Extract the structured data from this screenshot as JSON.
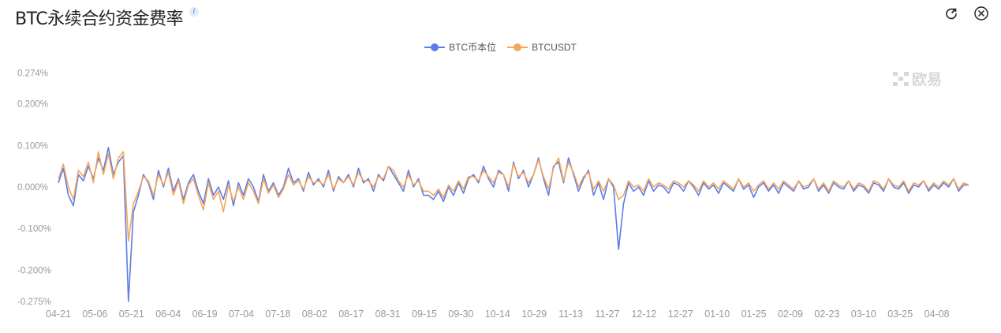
{
  "header": {
    "title": "BTC永续合约资金费率",
    "info_icon": "info-icon",
    "refresh_icon": "refresh-icon",
    "close_icon": "close-icon"
  },
  "watermark": "欧易",
  "chart_data": {
    "type": "line",
    "title": "",
    "xlabel": "",
    "ylabel": "",
    "x_tick_labels": [
      "04-21",
      "05-06",
      "05-21",
      "06-04",
      "06-19",
      "07-04",
      "07-18",
      "08-02",
      "08-17",
      "08-31",
      "09-15",
      "09-30",
      "10-14",
      "10-29",
      "11-13",
      "11-27",
      "12-12",
      "12-27",
      "01-10",
      "01-25",
      "02-09",
      "02-23",
      "03-10",
      "03-25",
      "04-08"
    ],
    "y_tick_labels": [
      "0.274%",
      "0.200%",
      "0.100%",
      "0.000%",
      "-0.100%",
      "-0.200%",
      "-0.275%"
    ],
    "y_ticks": [
      0.274,
      0.2,
      0.1,
      0,
      -0.1,
      -0.2,
      -0.275
    ],
    "ylim": [
      -0.275,
      0.274
    ],
    "y_unit": "%",
    "grid": false,
    "legend_position": "top-center",
    "series": [
      {
        "name": "BTC币本位",
        "color": "#5b7de8",
        "values": [
          0.01,
          0.045,
          -0.02,
          -0.045,
          0.03,
          0.015,
          0.05,
          0.02,
          0.07,
          0.04,
          0.095,
          0.03,
          0.06,
          0.075,
          -0.275,
          -0.06,
          -0.02,
          0.03,
          0.01,
          -0.03,
          0.04,
          0.0,
          0.045,
          -0.01,
          0.02,
          -0.03,
          0.01,
          0.03,
          -0.01,
          -0.04,
          0.02,
          -0.02,
          0.0,
          -0.03,
          0.015,
          -0.045,
          0.01,
          -0.02,
          0.02,
          0.0,
          -0.035,
          0.03,
          -0.01,
          0.01,
          -0.02,
          0.0,
          0.045,
          0.01,
          0.02,
          -0.01,
          0.035,
          0.005,
          0.02,
          0.0,
          0.04,
          -0.01,
          0.025,
          0.01,
          0.03,
          0.0,
          0.045,
          0.01,
          0.02,
          -0.01,
          0.03,
          0.015,
          0.05,
          0.03,
          0.01,
          -0.01,
          0.04,
          0.0,
          0.02,
          -0.02,
          -0.02,
          -0.03,
          -0.01,
          -0.035,
          0.0,
          -0.02,
          0.01,
          -0.015,
          0.02,
          0.03,
          0.01,
          0.05,
          0.02,
          0.0,
          0.04,
          0.03,
          -0.01,
          0.06,
          0.02,
          0.04,
          0.0,
          0.03,
          0.07,
          0.02,
          -0.02,
          0.05,
          0.06,
          0.01,
          0.07,
          0.03,
          -0.01,
          0.02,
          0.04,
          -0.02,
          0.01,
          -0.03,
          0.02,
          0.0,
          -0.15,
          -0.04,
          0.01,
          -0.01,
          0.0,
          -0.02,
          0.015,
          -0.01,
          0.005,
          0.0,
          -0.015,
          0.01,
          0.005,
          -0.01,
          0.015,
          0.0,
          -0.02,
          0.01,
          -0.005,
          0.005,
          -0.015,
          0.01,
          0.0,
          -0.01,
          0.02,
          -0.005,
          0.005,
          -0.025,
          0.0,
          0.01,
          -0.01,
          0.005,
          -0.015,
          0.01,
          0.0,
          -0.01,
          0.015,
          -0.005,
          0.0,
          0.02,
          -0.01,
          0.005,
          -0.015,
          0.01,
          0.0,
          -0.005,
          0.015,
          -0.01,
          0.005,
          0.0,
          -0.015,
          0.01,
          0.005,
          -0.01,
          0.02,
          0.0,
          -0.005,
          0.01,
          -0.015,
          0.005,
          0.0,
          0.015,
          -0.01,
          0.005,
          -0.005,
          0.01,
          0.0,
          0.02,
          -0.01,
          0.005,
          0.005
        ]
      },
      {
        "name": "BTCUSDT",
        "color": "#f5a65b",
        "values": [
          0.02,
          0.055,
          0.0,
          -0.03,
          0.04,
          0.025,
          0.06,
          0.01,
          0.085,
          0.03,
          0.08,
          0.02,
          0.07,
          0.085,
          -0.13,
          -0.04,
          -0.01,
          0.025,
          0.015,
          -0.02,
          0.03,
          0.005,
          0.035,
          -0.02,
          0.015,
          -0.04,
          0.005,
          0.02,
          -0.02,
          -0.055,
          0.01,
          -0.03,
          -0.01,
          -0.06,
          0.005,
          -0.035,
          0.0,
          -0.03,
          0.01,
          -0.01,
          -0.04,
          0.02,
          -0.015,
          0.005,
          -0.025,
          -0.005,
          0.03,
          0.005,
          0.015,
          -0.005,
          0.025,
          0.01,
          0.015,
          0.005,
          0.03,
          -0.005,
          0.02,
          0.01,
          0.025,
          0.005,
          0.035,
          0.015,
          0.015,
          0.0,
          0.025,
          0.02,
          0.05,
          0.04,
          0.015,
          0.0,
          0.03,
          0.005,
          0.015,
          -0.01,
          -0.01,
          -0.02,
          -0.005,
          -0.025,
          0.005,
          -0.01,
          0.015,
          -0.005,
          0.025,
          0.025,
          0.015,
          0.04,
          0.025,
          0.01,
          0.035,
          0.03,
          0.0,
          0.055,
          0.025,
          0.035,
          0.01,
          0.03,
          0.065,
          0.025,
          -0.005,
          0.045,
          0.07,
          0.015,
          0.06,
          0.035,
          0.0,
          0.025,
          0.035,
          -0.005,
          0.015,
          -0.01,
          0.02,
          0.005,
          -0.03,
          -0.02,
          0.015,
          0.0,
          0.005,
          -0.01,
          0.02,
          0.0,
          0.01,
          0.005,
          -0.005,
          0.015,
          0.01,
          0.0,
          0.015,
          0.005,
          -0.01,
          0.015,
          0.0,
          0.01,
          -0.005,
          0.015,
          0.005,
          -0.005,
          0.02,
          0.0,
          0.01,
          -0.01,
          0.005,
          0.015,
          -0.005,
          0.01,
          -0.005,
          0.015,
          0.005,
          -0.005,
          0.015,
          0.0,
          0.005,
          0.02,
          -0.005,
          0.01,
          -0.01,
          0.015,
          0.005,
          0.0,
          0.015,
          -0.005,
          0.01,
          0.005,
          -0.01,
          0.015,
          0.01,
          -0.005,
          0.02,
          0.005,
          0.0,
          0.015,
          -0.01,
          0.01,
          0.005,
          0.015,
          -0.005,
          0.01,
          0.0,
          0.015,
          0.005,
          0.02,
          -0.005,
          0.01,
          0.005
        ]
      }
    ]
  }
}
